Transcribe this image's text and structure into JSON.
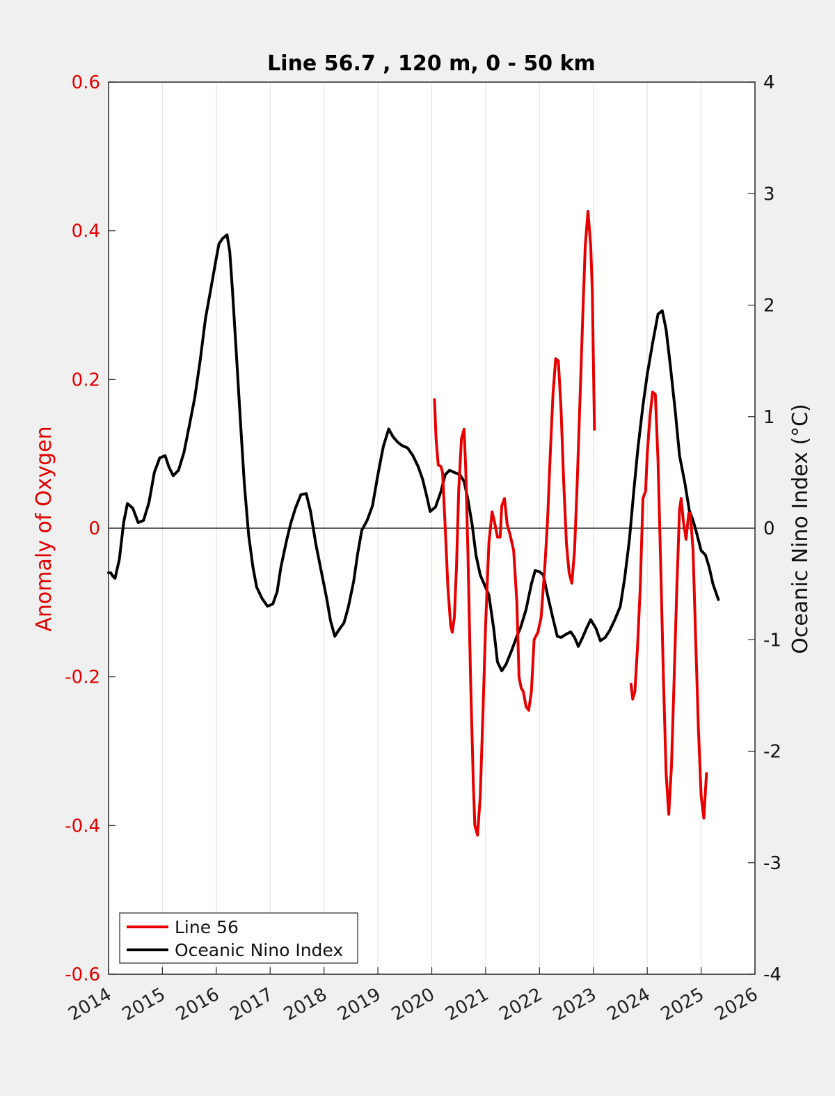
{
  "chart_data": {
    "type": "line",
    "title": "Line 56.7 , 120 m, 0 - 50 km",
    "ylabel_left": "Anomaly of Oxygen",
    "ylabel_right": "Oceanic Nino Index (°C)",
    "xlabel": "",
    "xlim": [
      2014,
      2026
    ],
    "ylim_left": [
      -0.6,
      0.6
    ],
    "ylim_right": [
      -4,
      4
    ],
    "x_ticks": [
      "2014",
      "2015",
      "2016",
      "2017",
      "2018",
      "2019",
      "2020",
      "2021",
      "2022",
      "2023",
      "2024",
      "2025",
      "2026"
    ],
    "y_ticks_left": [
      "0.6",
      "0.4",
      "0.2",
      "0",
      "-0.2",
      "-0.4",
      "-0.6"
    ],
    "y_ticks_right": [
      "4",
      "3",
      "2",
      "1",
      "0",
      "-1",
      "-2",
      "-3",
      "-4"
    ],
    "grid": "vertical",
    "legend_placement": "bottom-left",
    "zero_line": true,
    "colors": {
      "line56": "#e60000",
      "oni": "#000000",
      "left_axis": "#e00000",
      "background": "#f0f0f0",
      "plot_bg": "#ffffff",
      "grid": "#e0e0e0"
    },
    "series": [
      {
        "name": "Line 56",
        "axis": "left",
        "segments": [
          [
            [
              2020.05,
              0.173
            ],
            [
              2020.08,
              0.12
            ],
            [
              2020.12,
              0.085
            ],
            [
              2020.17,
              0.083
            ],
            [
              2020.2,
              0.075
            ],
            [
              2020.25,
              0.0
            ],
            [
              2020.3,
              -0.08
            ],
            [
              2020.35,
              -0.13
            ],
            [
              2020.38,
              -0.14
            ],
            [
              2020.42,
              -0.12
            ],
            [
              2020.46,
              -0.05
            ],
            [
              2020.5,
              0.05
            ],
            [
              2020.55,
              0.12
            ],
            [
              2020.6,
              0.133
            ],
            [
              2020.63,
              0.08
            ],
            [
              2020.67,
              -0.03
            ],
            [
              2020.72,
              -0.2
            ],
            [
              2020.77,
              -0.34
            ],
            [
              2020.8,
              -0.4
            ],
            [
              2020.85,
              -0.413
            ],
            [
              2020.9,
              -0.36
            ],
            [
              2020.95,
              -0.25
            ],
            [
              2021.0,
              -0.13
            ],
            [
              2021.06,
              -0.02
            ],
            [
              2021.12,
              0.022
            ],
            [
              2021.16,
              0.01
            ],
            [
              2021.22,
              -0.012
            ],
            [
              2021.27,
              -0.012
            ],
            [
              2021.3,
              0.03
            ],
            [
              2021.35,
              0.04
            ],
            [
              2021.4,
              0.005
            ],
            [
              2021.45,
              -0.008
            ],
            [
              2021.52,
              -0.03
            ],
            [
              2021.58,
              -0.1
            ],
            [
              2021.62,
              -0.2
            ],
            [
              2021.66,
              -0.215
            ],
            [
              2021.7,
              -0.22
            ],
            [
              2021.75,
              -0.24
            ],
            [
              2021.8,
              -0.245
            ],
            [
              2021.85,
              -0.22
            ],
            [
              2021.9,
              -0.15
            ],
            [
              2021.97,
              -0.14
            ],
            [
              2022.03,
              -0.12
            ],
            [
              2022.1,
              -0.05
            ],
            [
              2022.15,
              0.01
            ],
            [
              2022.2,
              0.1
            ],
            [
              2022.25,
              0.18
            ],
            [
              2022.3,
              0.228
            ],
            [
              2022.35,
              0.225
            ],
            [
              2022.4,
              0.16
            ],
            [
              2022.45,
              0.06
            ],
            [
              2022.5,
              -0.02
            ],
            [
              2022.55,
              -0.06
            ],
            [
              2022.6,
              -0.074
            ],
            [
              2022.65,
              -0.03
            ],
            [
              2022.7,
              0.06
            ],
            [
              2022.75,
              0.17
            ],
            [
              2022.8,
              0.28
            ],
            [
              2022.85,
              0.38
            ],
            [
              2022.9,
              0.426
            ],
            [
              2022.95,
              0.38
            ],
            [
              2022.98,
              0.32
            ],
            [
              2023.02,
              0.133
            ]
          ],
          [
            [
              2023.7,
              -0.21
            ],
            [
              2023.73,
              -0.23
            ],
            [
              2023.77,
              -0.22
            ],
            [
              2023.82,
              -0.16
            ],
            [
              2023.87,
              -0.08
            ],
            [
              2023.92,
              0.04
            ],
            [
              2023.97,
              0.05
            ],
            [
              2024.0,
              0.1
            ],
            [
              2024.05,
              0.15
            ],
            [
              2024.1,
              0.183
            ],
            [
              2024.15,
              0.18
            ],
            [
              2024.2,
              0.09
            ],
            [
              2024.25,
              -0.05
            ],
            [
              2024.3,
              -0.2
            ],
            [
              2024.35,
              -0.33
            ],
            [
              2024.4,
              -0.385
            ],
            [
              2024.45,
              -0.32
            ],
            [
              2024.5,
              -0.2
            ],
            [
              2024.55,
              -0.08
            ],
            [
              2024.6,
              0.025
            ],
            [
              2024.63,
              0.04
            ],
            [
              2024.67,
              0.01
            ],
            [
              2024.72,
              -0.015
            ],
            [
              2024.77,
              0.02
            ],
            [
              2024.8,
              0.02
            ],
            [
              2024.85,
              -0.03
            ],
            [
              2024.9,
              -0.15
            ],
            [
              2024.95,
              -0.27
            ],
            [
              2025.0,
              -0.36
            ],
            [
              2025.05,
              -0.39
            ],
            [
              2025.1,
              -0.33
            ]
          ]
        ]
      },
      {
        "name": "Oceanic Nino Index",
        "axis": "right",
        "segments": [
          [
            [
              2014.0,
              -0.4
            ],
            [
              2014.04,
              -0.4
            ],
            [
              2014.08,
              -0.43
            ],
            [
              2014.12,
              -0.45
            ],
            [
              2014.2,
              -0.28
            ],
            [
              2014.28,
              0.05
            ],
            [
              2014.35,
              0.22
            ],
            [
              2014.45,
              0.18
            ],
            [
              2014.55,
              0.05
            ],
            [
              2014.65,
              0.07
            ],
            [
              2014.75,
              0.23
            ],
            [
              2014.85,
              0.5
            ],
            [
              2014.95,
              0.63
            ],
            [
              2015.05,
              0.65
            ],
            [
              2015.12,
              0.55
            ],
            [
              2015.2,
              0.47
            ],
            [
              2015.3,
              0.52
            ],
            [
              2015.4,
              0.68
            ],
            [
              2015.5,
              0.92
            ],
            [
              2015.6,
              1.17
            ],
            [
              2015.7,
              1.5
            ],
            [
              2015.8,
              1.88
            ],
            [
              2015.9,
              2.15
            ],
            [
              2016.0,
              2.42
            ],
            [
              2016.05,
              2.55
            ],
            [
              2016.12,
              2.6
            ],
            [
              2016.2,
              2.63
            ],
            [
              2016.25,
              2.48
            ],
            [
              2016.3,
              2.13
            ],
            [
              2016.38,
              1.5
            ],
            [
              2016.45,
              0.94
            ],
            [
              2016.52,
              0.4
            ],
            [
              2016.6,
              -0.06
            ],
            [
              2016.68,
              -0.35
            ],
            [
              2016.75,
              -0.53
            ],
            [
              2016.85,
              -0.63
            ],
            [
              2016.95,
              -0.7
            ],
            [
              2017.05,
              -0.68
            ],
            [
              2017.13,
              -0.57
            ],
            [
              2017.2,
              -0.35
            ],
            [
              2017.3,
              -0.12
            ],
            [
              2017.38,
              0.04
            ],
            [
              2017.47,
              0.18
            ],
            [
              2017.57,
              0.3
            ],
            [
              2017.67,
              0.31
            ],
            [
              2017.75,
              0.15
            ],
            [
              2017.85,
              -0.15
            ],
            [
              2017.95,
              -0.39
            ],
            [
              2018.05,
              -0.63
            ],
            [
              2018.12,
              -0.83
            ],
            [
              2018.2,
              -0.97
            ],
            [
              2018.28,
              -0.91
            ],
            [
              2018.37,
              -0.85
            ],
            [
              2018.45,
              -0.71
            ],
            [
              2018.55,
              -0.48
            ],
            [
              2018.62,
              -0.24
            ],
            [
              2018.7,
              -0.02
            ],
            [
              2018.8,
              0.07
            ],
            [
              2018.9,
              0.2
            ],
            [
              2019.0,
              0.48
            ],
            [
              2019.1,
              0.73
            ],
            [
              2019.2,
              0.89
            ],
            [
              2019.28,
              0.82
            ],
            [
              2019.37,
              0.77
            ],
            [
              2019.45,
              0.74
            ],
            [
              2019.55,
              0.72
            ],
            [
              2019.65,
              0.65
            ],
            [
              2019.75,
              0.55
            ],
            [
              2019.83,
              0.44
            ],
            [
              2019.9,
              0.3
            ],
            [
              2019.97,
              0.15
            ],
            [
              2020.07,
              0.19
            ],
            [
              2020.17,
              0.33
            ],
            [
              2020.25,
              0.48
            ],
            [
              2020.33,
              0.52
            ],
            [
              2020.42,
              0.5
            ],
            [
              2020.52,
              0.48
            ],
            [
              2020.6,
              0.42
            ],
            [
              2020.67,
              0.26
            ],
            [
              2020.75,
              0.03
            ],
            [
              2020.82,
              -0.24
            ],
            [
              2020.9,
              -0.42
            ],
            [
              2020.98,
              -0.51
            ],
            [
              2021.06,
              -0.6
            ],
            [
              2021.15,
              -0.9
            ],
            [
              2021.22,
              -1.2
            ],
            [
              2021.3,
              -1.28
            ],
            [
              2021.38,
              -1.22
            ],
            [
              2021.48,
              -1.1
            ],
            [
              2021.58,
              -0.97
            ],
            [
              2021.65,
              -0.89
            ],
            [
              2021.75,
              -0.73
            ],
            [
              2021.85,
              -0.5
            ],
            [
              2021.92,
              -0.38
            ],
            [
              2022.0,
              -0.39
            ],
            [
              2022.07,
              -0.42
            ],
            [
              2022.15,
              -0.6
            ],
            [
              2022.25,
              -0.81
            ],
            [
              2022.33,
              -0.97
            ],
            [
              2022.4,
              -0.98
            ],
            [
              2022.5,
              -0.95
            ],
            [
              2022.58,
              -0.93
            ],
            [
              2022.65,
              -0.98
            ],
            [
              2022.72,
              -1.06
            ],
            [
              2022.8,
              -0.98
            ],
            [
              2022.88,
              -0.89
            ],
            [
              2022.95,
              -0.82
            ],
            [
              2023.05,
              -0.9
            ],
            [
              2023.13,
              -1.01
            ],
            [
              2023.22,
              -0.98
            ],
            [
              2023.3,
              -0.92
            ],
            [
              2023.4,
              -0.82
            ],
            [
              2023.5,
              -0.7
            ],
            [
              2023.58,
              -0.45
            ],
            [
              2023.67,
              -0.1
            ],
            [
              2023.75,
              0.33
            ],
            [
              2023.83,
              0.73
            ],
            [
              2023.92,
              1.1
            ],
            [
              2024.0,
              1.38
            ],
            [
              2024.1,
              1.66
            ],
            [
              2024.2,
              1.92
            ],
            [
              2024.28,
              1.95
            ],
            [
              2024.35,
              1.78
            ],
            [
              2024.43,
              1.45
            ],
            [
              2024.52,
              1.05
            ],
            [
              2024.6,
              0.65
            ],
            [
              2024.7,
              0.4
            ],
            [
              2024.78,
              0.16
            ],
            [
              2024.85,
              0.07
            ],
            [
              2024.92,
              -0.05
            ],
            [
              2025.0,
              -0.2
            ],
            [
              2025.08,
              -0.24
            ],
            [
              2025.15,
              -0.35
            ],
            [
              2025.22,
              -0.5
            ],
            [
              2025.32,
              -0.64
            ]
          ]
        ]
      }
    ]
  }
}
